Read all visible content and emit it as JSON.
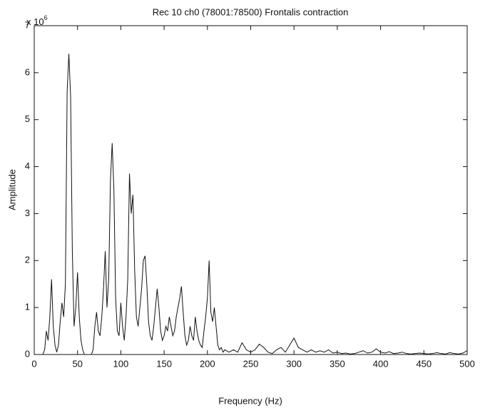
{
  "chart_data": {
    "type": "line",
    "title": "Rec 10 ch0 (78001:78500) Frontalis contraction",
    "x_label": "Frequency (Hz)",
    "y_label": "Amplitude",
    "y_multiplier": {
      "base": "x 10",
      "exponent": "6"
    },
    "xlim": [
      0,
      500
    ],
    "ylim": [
      0,
      7
    ],
    "xticks": [
      0,
      50,
      100,
      150,
      200,
      250,
      300,
      350,
      400,
      450,
      500
    ],
    "yticks": [
      0,
      1,
      2,
      3,
      4,
      5,
      6,
      7
    ],
    "grid": false,
    "x": [
      0,
      2,
      4,
      6,
      8,
      10,
      12,
      14,
      16,
      18,
      20,
      22,
      24,
      26,
      28,
      30,
      32,
      34,
      36,
      38,
      40,
      42,
      44,
      46,
      48,
      50,
      52,
      54,
      56,
      58,
      60,
      62,
      64,
      66,
      68,
      70,
      72,
      74,
      76,
      78,
      80,
      82,
      84,
      86,
      88,
      90,
      92,
      94,
      96,
      98,
      100,
      102,
      104,
      106,
      108,
      110,
      112,
      114,
      116,
      118,
      120,
      122,
      124,
      126,
      128,
      130,
      132,
      134,
      136,
      138,
      140,
      142,
      144,
      146,
      148,
      150,
      152,
      154,
      156,
      158,
      160,
      162,
      164,
      166,
      168,
      170,
      172,
      174,
      176,
      178,
      180,
      182,
      184,
      186,
      188,
      190,
      192,
      194,
      196,
      198,
      200,
      202,
      204,
      206,
      208,
      210,
      212,
      214,
      216,
      218,
      220,
      225,
      230,
      235,
      240,
      245,
      250,
      255,
      260,
      265,
      270,
      275,
      280,
      285,
      290,
      295,
      300,
      305,
      310,
      315,
      320,
      325,
      330,
      335,
      340,
      345,
      350,
      355,
      360,
      365,
      370,
      375,
      380,
      385,
      390,
      395,
      400,
      405,
      410,
      415,
      420,
      425,
      430,
      435,
      440,
      445,
      450,
      455,
      460,
      465,
      470,
      475,
      480,
      485,
      490,
      495,
      500
    ],
    "series": [
      {
        "color": "#111111",
        "values": [
          0,
          0,
          0,
          0,
          0,
          0,
          0.1,
          0.5,
          0.3,
          0.8,
          1.6,
          0.6,
          0.2,
          0.05,
          0.2,
          0.7,
          1.1,
          0.8,
          1.5,
          5.6,
          6.4,
          5.5,
          2.2,
          0.6,
          1.0,
          1.75,
          0.8,
          0.3,
          0.1,
          0,
          0,
          0,
          0,
          0,
          0.1,
          0.6,
          0.9,
          0.5,
          0.4,
          0.8,
          1.4,
          2.2,
          1.0,
          1.6,
          3.7,
          4.5,
          3.5,
          1.2,
          0.5,
          0.4,
          1.1,
          0.6,
          0.3,
          0.8,
          1.6,
          3.85,
          3.0,
          3.4,
          1.8,
          0.8,
          0.6,
          1.0,
          1.4,
          2.0,
          2.1,
          1.5,
          0.7,
          0.4,
          0.3,
          0.6,
          1.0,
          1.4,
          1.0,
          0.5,
          0.3,
          0.4,
          0.6,
          0.5,
          0.8,
          0.6,
          0.4,
          0.5,
          0.8,
          1.0,
          1.2,
          1.45,
          0.9,
          0.4,
          0.2,
          0.3,
          0.6,
          0.4,
          0.3,
          0.8,
          0.5,
          0.3,
          0.2,
          0.15,
          0.5,
          0.8,
          1.2,
          2.0,
          0.9,
          0.7,
          1.0,
          0.6,
          0.2,
          0.1,
          0.15,
          0.05,
          0.1,
          0.05,
          0.1,
          0.05,
          0.25,
          0.1,
          0.05,
          0.1,
          0.22,
          0.15,
          0.05,
          0.02,
          0.1,
          0.15,
          0.05,
          0.2,
          0.35,
          0.15,
          0.1,
          0.05,
          0.1,
          0.05,
          0.08,
          0.05,
          0.1,
          0.03,
          0.05,
          0.02,
          0.03,
          0.01,
          0.02,
          0.05,
          0.08,
          0.03,
          0.05,
          0.12,
          0.05,
          0.03,
          0.06,
          0.02,
          0.03,
          0.05,
          0.02,
          0.01,
          0.02,
          0.03,
          0.02,
          0.01,
          0.02,
          0.04,
          0.02,
          0.01,
          0.04,
          0.02,
          0.01,
          0.03,
          0.08
        ]
      }
    ]
  }
}
